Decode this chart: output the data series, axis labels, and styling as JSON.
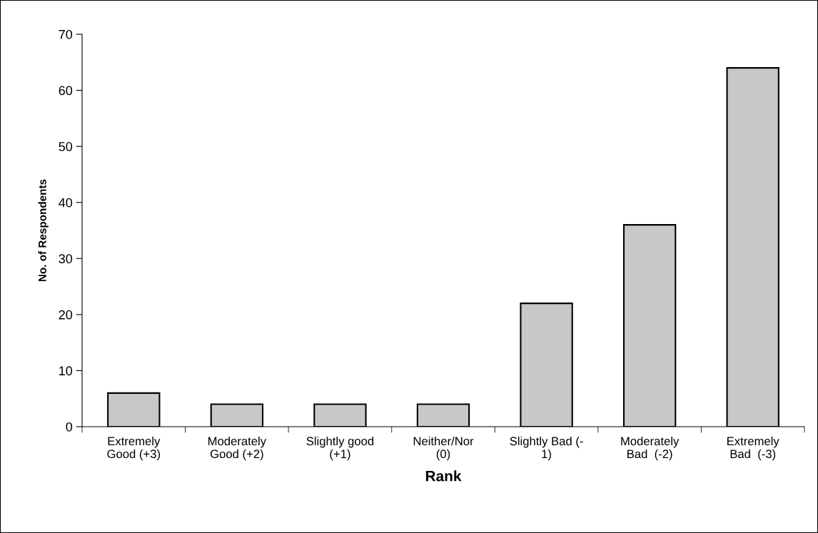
{
  "chart_data": {
    "type": "bar",
    "xlabel": "Rank",
    "ylabel": "No. of Respondents",
    "categories": [
      "Extremely\nGood (+3)",
      "Moderately\nGood (+2)",
      "Slightly good\n(+1)",
      "Neither/Nor\n(0)",
      "Slightly Bad (-\n1)",
      "Moderately\nBad  (-2)",
      "Extremely\nBad  (-3)"
    ],
    "values": [
      6,
      4,
      4,
      4,
      22,
      36,
      64
    ],
    "color": "#c8c8c8",
    "ylim": [
      0,
      70
    ],
    "yticks": [
      0,
      10,
      20,
      30,
      40,
      50,
      60,
      70
    ],
    "grid": false,
    "legend": false
  }
}
